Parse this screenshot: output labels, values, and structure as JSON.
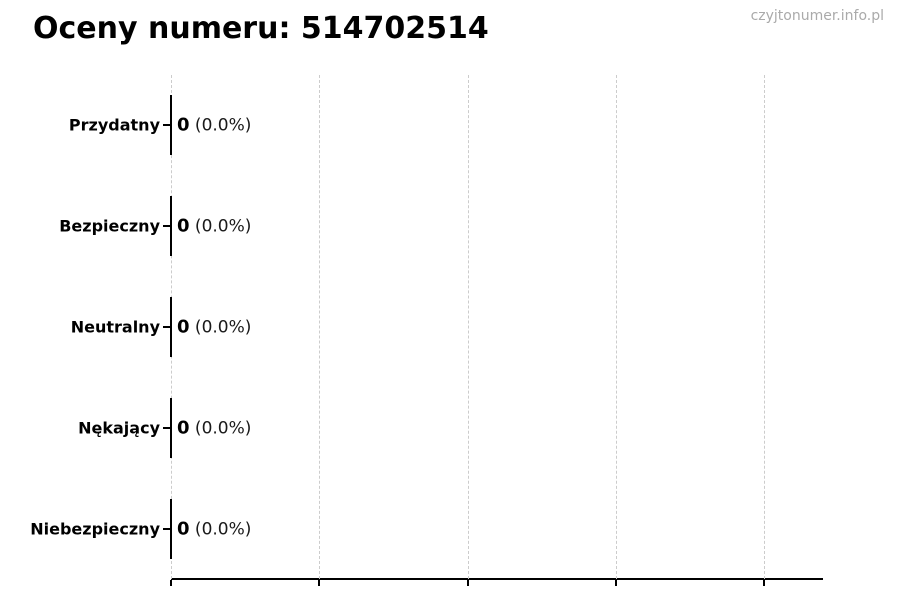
{
  "watermark": "czyjtonumer.info.pl",
  "colors": {
    "background": "#ffffff",
    "title_text": "#000000",
    "label_text": "#000000",
    "value_text": "#1a1a1a",
    "gridline": "#cccccc",
    "axis": "#000000",
    "watermark_text": "#aaaaaa"
  },
  "chart_data": {
    "type": "bar",
    "orientation": "horizontal",
    "title": "Oceny numeru: 514702514",
    "categories": [
      "Przydatny",
      "Bezpieczny",
      "Neutralny",
      "Nękający",
      "Niebezpieczny"
    ],
    "values": [
      0,
      0,
      0,
      0,
      0
    ],
    "percent_labels": [
      "0.0%",
      "0.0%",
      "0.0%",
      "0.0%",
      "0.0%"
    ],
    "value_label_format": "{value} ({percent})",
    "xlabel": "",
    "ylabel": "",
    "xlim": [
      0,
      1.1
    ],
    "x_tick_count": 5,
    "grid": "vertical-dashed",
    "legend": "none",
    "bar_fill": "none",
    "bar_edge_color": "#000000"
  }
}
